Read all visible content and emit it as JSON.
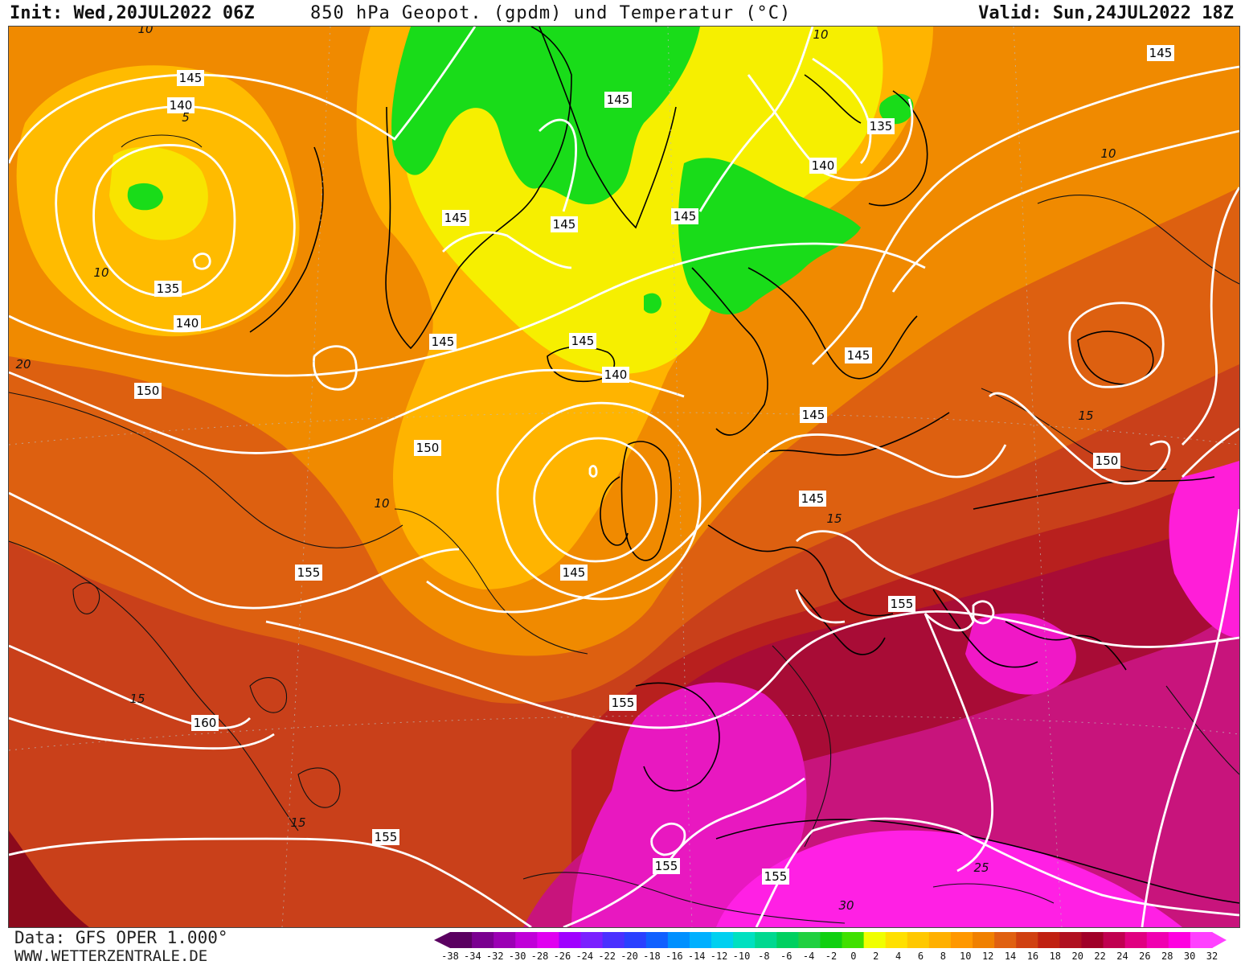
{
  "header": {
    "init": "Init: Wed,20JUL2022 06Z",
    "title": "850 hPa Geopot. (gpdm) und Temperatur (°C)",
    "valid": "Valid: Sun,24JUL2022 18Z"
  },
  "footer": {
    "data_source": "Data: GFS OPER 1.000°",
    "website": "WWW.WETTERZENTRALE.DE"
  },
  "colorbar": {
    "ticks": [
      "-38",
      "-34",
      "-32",
      "-30",
      "-28",
      "-26",
      "-24",
      "-22",
      "-20",
      "-18",
      "-16",
      "-14",
      "-12",
      "-10",
      "-8",
      "-6",
      "-4",
      "-2",
      "0",
      "2",
      "4",
      "6",
      "8",
      "10",
      "12",
      "14",
      "16",
      "18",
      "20",
      "22",
      "24",
      "26",
      "28",
      "30",
      "32"
    ],
    "colors": [
      "#5a0060",
      "#7a0090",
      "#9b00b4",
      "#c000d8",
      "#e000f0",
      "#a000ff",
      "#7a20ff",
      "#4a30ff",
      "#2a40ff",
      "#1060ff",
      "#0090ff",
      "#00b0ff",
      "#00d0f0",
      "#00e0c0",
      "#00d890",
      "#00d060",
      "#20d040",
      "#10d010",
      "#40e000",
      "#f0ff00",
      "#ffe000",
      "#ffc800",
      "#ffb000",
      "#ff9800",
      "#f08000",
      "#e06010",
      "#d04010",
      "#c02010",
      "#b01020",
      "#a00028",
      "#c00050",
      "#e00080",
      "#f000b0",
      "#ff00e0",
      "#ff40ff"
    ]
  },
  "map": {
    "geopotential_labels": [
      "145",
      "140",
      "135",
      "140",
      "145",
      "145",
      "145",
      "145",
      "145",
      "140",
      "135",
      "145",
      "145",
      "145",
      "145",
      "140",
      "145",
      "150",
      "150",
      "150",
      "155",
      "145",
      "150",
      "155",
      "155",
      "155",
      "160",
      "155",
      "155",
      "155",
      "145"
    ],
    "temperature_labels": [
      "10",
      "5",
      "10",
      "20",
      "10",
      "10",
      "15",
      "15",
      "10",
      "15",
      "15",
      "25",
      "30"
    ],
    "palette": {
      "green": "#18e018",
      "yellow": "#f8f000",
      "yellow_orange": "#ffc400",
      "orange": "#f59a00",
      "dark_orange": "#e36a10",
      "red_orange": "#cf4514",
      "red": "#b8221c",
      "crimson": "#a80c34",
      "magenta": "#d0107a",
      "pink": "#f016c8",
      "fuchsia": "#ff20e6",
      "isohypse": "#ffffff",
      "isotherm": "#111111",
      "coast": "#000000"
    }
  }
}
